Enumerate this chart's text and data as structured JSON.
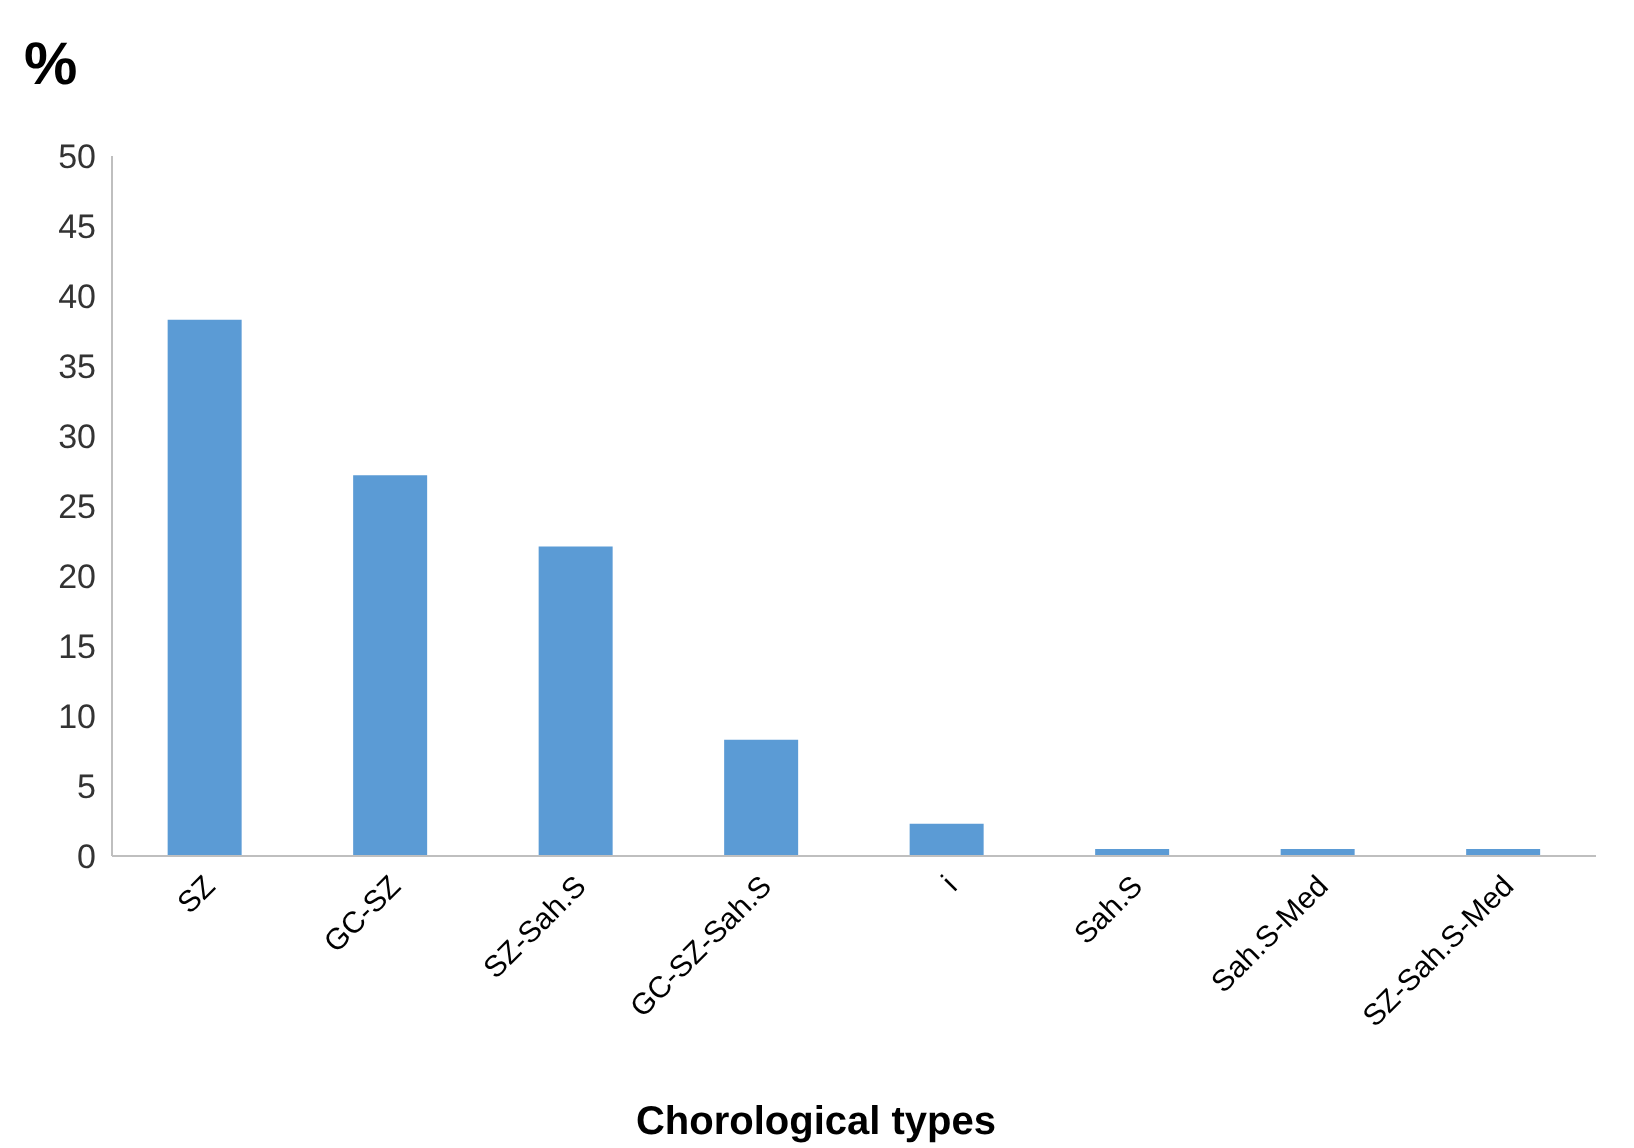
{
  "chart_data": {
    "type": "bar",
    "ylabel": "%",
    "xlabel": "Chorological types",
    "categories": [
      "SZ",
      "GC-SZ",
      "SZ-Sah.S",
      "GC-SZ-Sah.S",
      "i",
      "Sah.S",
      "Sah.S-Med",
      "SZ-Sah.S-Med"
    ],
    "values": [
      38.3,
      27.2,
      22.1,
      8.3,
      2.3,
      0.5,
      0.5,
      0.5
    ],
    "color": "#5b9bd5",
    "ylim": [
      0,
      50
    ],
    "yticks": [
      0,
      5,
      10,
      15,
      20,
      25,
      30,
      35,
      40,
      45,
      50
    ],
    "grid": false,
    "legend": false
  }
}
